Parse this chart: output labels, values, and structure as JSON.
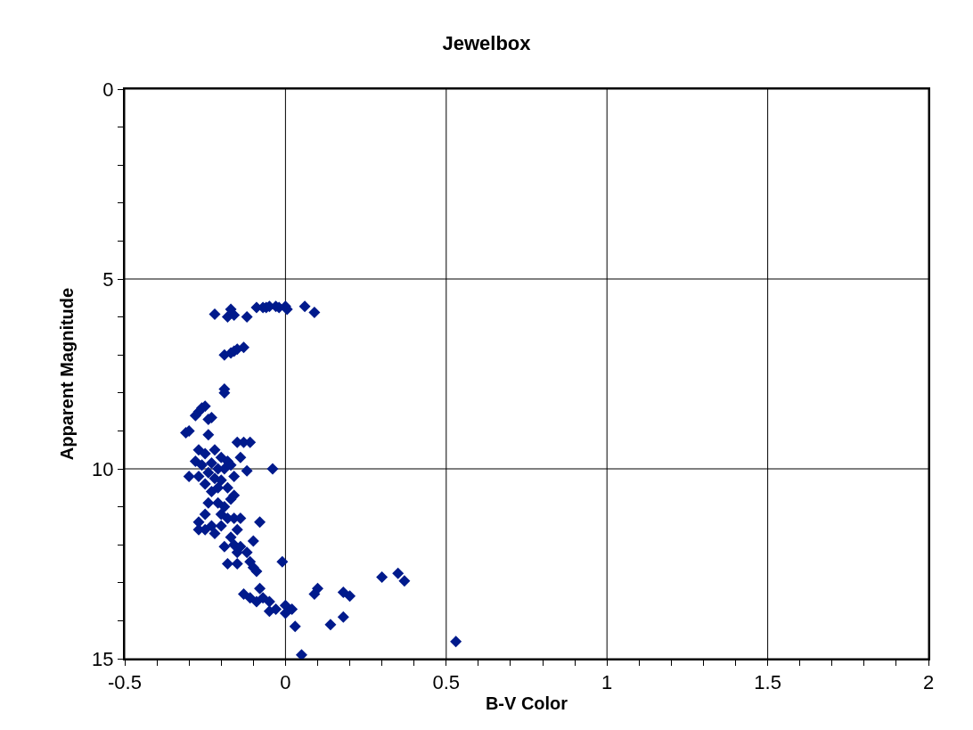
{
  "chart_data": {
    "type": "scatter",
    "title": "Jewelbox",
    "xlabel": "B-V Color",
    "ylabel": "Apparent Magnitude",
    "marker": "diamond",
    "grid": true,
    "xlim": [
      -0.5,
      2
    ],
    "ylim": [
      15,
      0
    ],
    "xticks": [
      -0.5,
      {
        "value": -0.4,
        "label": null
      },
      {
        "value": -0.3,
        "label": null
      },
      {
        "value": -0.2,
        "label": null
      },
      {
        "value": -0.1,
        "label": null
      },
      0,
      {
        "value": 0.1,
        "label": null
      },
      {
        "value": 0.2,
        "label": null
      },
      {
        "value": 0.3,
        "label": null
      },
      {
        "value": 0.4,
        "label": null
      },
      0.5,
      {
        "value": 0.6,
        "label": null
      },
      {
        "value": 0.7,
        "label": null
      },
      {
        "value": 0.8,
        "label": null
      },
      {
        "value": 0.9,
        "label": null
      },
      1,
      {
        "value": 1.1,
        "label": null
      },
      {
        "value": 1.2,
        "label": null
      },
      {
        "value": 1.3,
        "label": null
      },
      {
        "value": 1.4,
        "label": null
      },
      1.5,
      {
        "value": 1.6,
        "label": null
      },
      {
        "value": 1.7,
        "label": null
      },
      {
        "value": 1.8,
        "label": null
      },
      {
        "value": 1.9,
        "label": null
      },
      2
    ],
    "yticks": [
      0,
      {
        "value": 1,
        "label": null
      },
      {
        "value": 2,
        "label": null
      },
      {
        "value": 3,
        "label": null
      },
      {
        "value": 4,
        "label": null
      },
      5,
      {
        "value": 6,
        "label": null
      },
      {
        "value": 7,
        "label": null
      },
      {
        "value": 8,
        "label": null
      },
      {
        "value": 9,
        "label": null
      },
      10,
      {
        "value": 11,
        "label": null
      },
      {
        "value": 12,
        "label": null
      },
      {
        "value": 13,
        "label": null
      },
      {
        "value": 14,
        "label": null
      },
      15
    ],
    "series": [
      {
        "color": "#001a8c",
        "x": [
          -0.09,
          -0.07,
          -0.06,
          -0.05,
          -0.03,
          -0.02,
          0,
          0.005,
          0.06,
          0.09,
          -0.22,
          -0.17,
          -0.18,
          -0.16,
          -0.12,
          -0.19,
          -0.17,
          -0.15,
          -0.13,
          -0.16,
          -0.19,
          -0.19,
          -0.26,
          -0.25,
          -0.27,
          -0.28,
          -0.23,
          -0.24,
          -0.31,
          -0.3,
          -0.24,
          -0.15,
          -0.13,
          -0.11,
          -0.27,
          -0.25,
          -0.22,
          -0.2,
          -0.18,
          -0.28,
          -0.26,
          -0.23,
          -0.21,
          -0.19,
          -0.17,
          -0.14,
          -0.12,
          -0.04,
          -0.3,
          -0.27,
          -0.24,
          -0.22,
          -0.2,
          -0.16,
          -0.25,
          -0.23,
          -0.21,
          -0.18,
          -0.16,
          -0.24,
          -0.21,
          -0.19,
          -0.17,
          -0.2,
          -0.18,
          -0.25,
          -0.27,
          -0.23,
          -0.25,
          -0.27,
          -0.22,
          -0.2,
          -0.16,
          -0.14,
          -0.08,
          -0.15,
          -0.17,
          -0.19,
          -0.16,
          -0.14,
          -0.12,
          -0.1,
          -0.15,
          -0.18,
          -0.15,
          -0.11,
          -0.1,
          -0.09,
          -0.01,
          -0.13,
          -0.11,
          -0.09,
          -0.08,
          -0.07,
          -0.05,
          -0.03,
          -0.05,
          0,
          0.02,
          0,
          0.03,
          0.1,
          0.09,
          0.18,
          0.2,
          0.18,
          0.14,
          0.3,
          0.35,
          0.37,
          0.53,
          0.05
        ],
        "values": [
          5.75,
          5.75,
          5.75,
          5.72,
          5.72,
          5.75,
          5.72,
          5.8,
          5.72,
          5.88,
          5.93,
          5.8,
          6.0,
          5.95,
          6.0,
          7.0,
          6.95,
          6.85,
          6.8,
          6.9,
          7.9,
          8.0,
          8.4,
          8.35,
          8.5,
          8.6,
          8.65,
          8.7,
          9.05,
          9.0,
          9.1,
          9.3,
          9.3,
          9.3,
          9.5,
          9.6,
          9.5,
          9.7,
          9.8,
          9.8,
          9.9,
          9.85,
          10.0,
          10.0,
          9.9,
          9.7,
          10.05,
          10.0,
          10.2,
          10.2,
          10.1,
          10.25,
          10.3,
          10.2,
          10.4,
          10.6,
          10.5,
          10.5,
          10.7,
          10.9,
          10.9,
          11.0,
          10.8,
          11.2,
          11.3,
          11.2,
          11.4,
          11.5,
          11.6,
          11.6,
          11.7,
          11.5,
          11.3,
          11.3,
          11.4,
          11.6,
          11.8,
          12.05,
          12.0,
          12.05,
          12.2,
          11.9,
          12.2,
          12.5,
          12.5,
          12.45,
          12.6,
          12.7,
          12.45,
          13.3,
          13.4,
          13.5,
          13.15,
          13.4,
          13.5,
          13.7,
          13.75,
          13.6,
          13.7,
          13.8,
          14.15,
          13.15,
          13.3,
          13.25,
          13.35,
          13.9,
          14.1,
          12.85,
          12.75,
          12.95,
          14.55,
          14.9
        ]
      }
    ]
  }
}
